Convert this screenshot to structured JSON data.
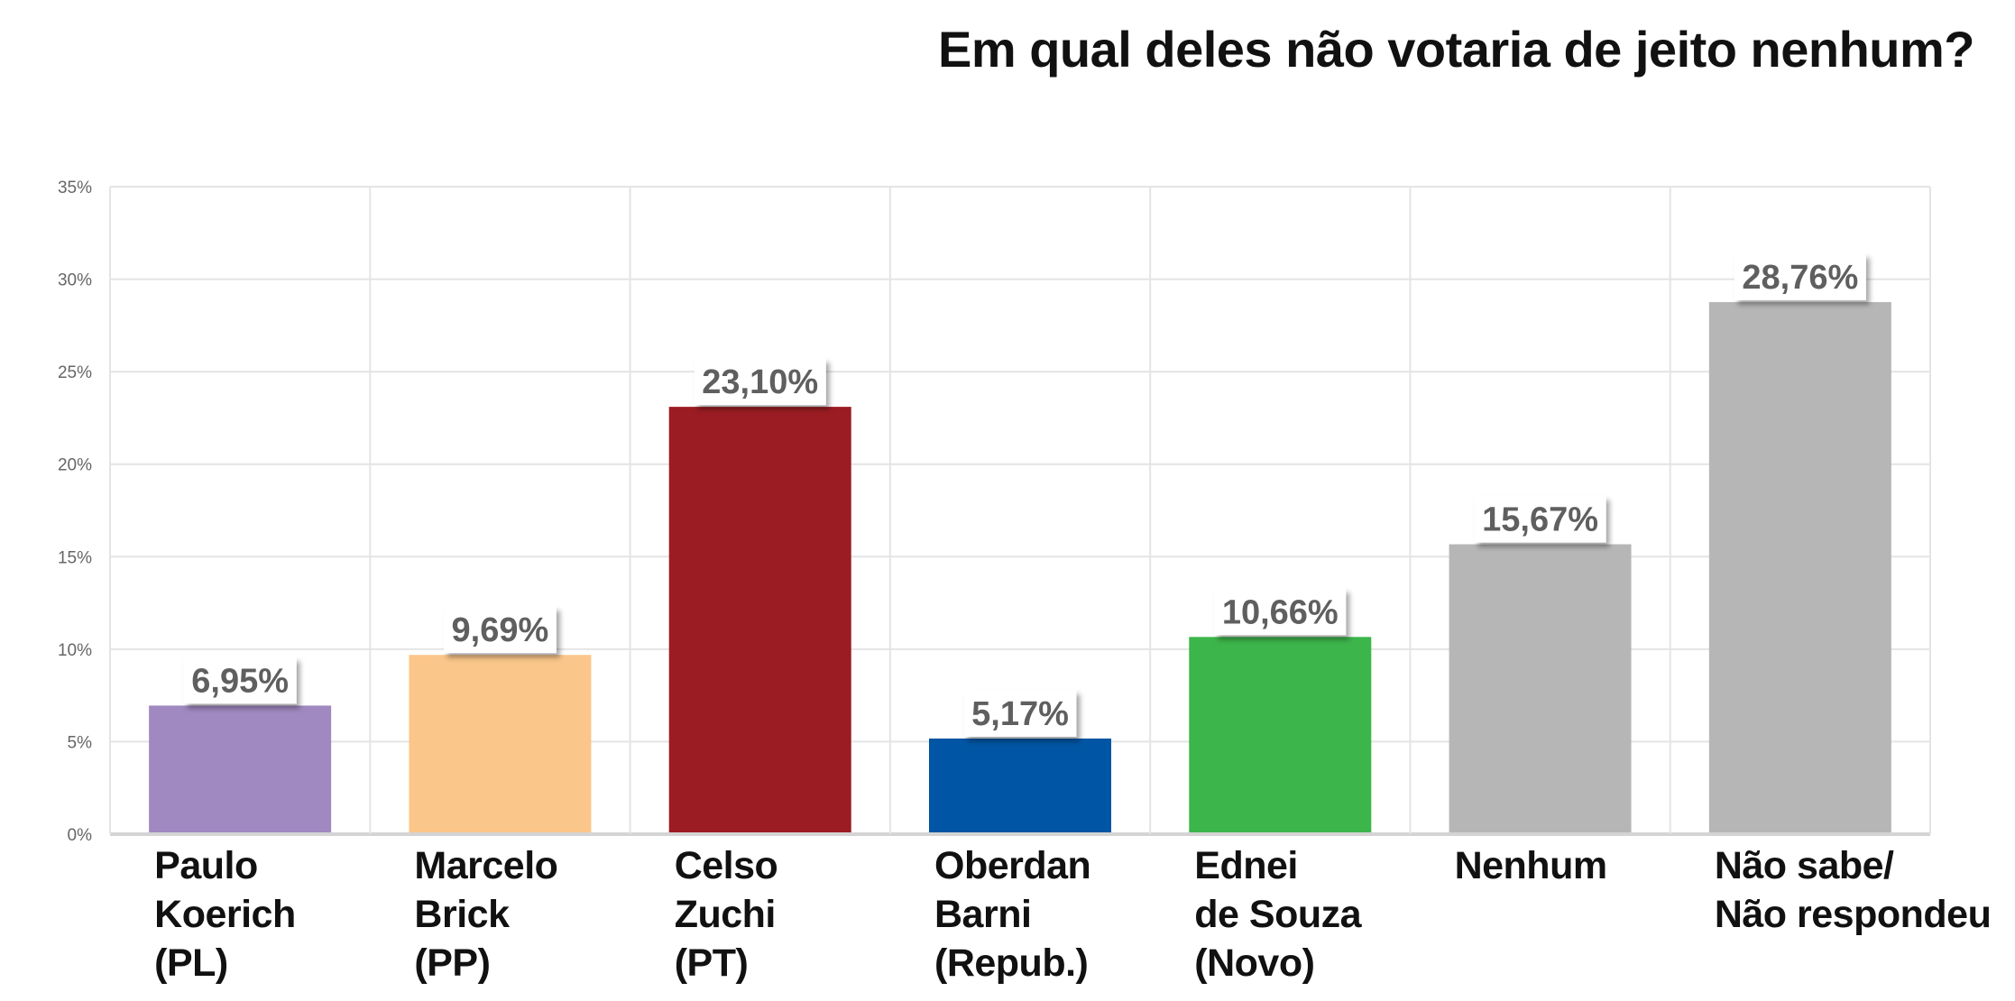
{
  "chart_data": {
    "type": "bar",
    "title": "Em qual deles não votaria de jeito nenhum?",
    "categories": [
      [
        "Paulo",
        "Koerich",
        "(PL)"
      ],
      [
        "Marcelo",
        "Brick",
        "(PP)"
      ],
      [
        "Celso",
        "Zuchi",
        "(PT)"
      ],
      [
        "Oberdan",
        "Barni",
        "(Repub.)"
      ],
      [
        "Ednei",
        "de Souza",
        "(Novo)"
      ],
      [
        "Nenhum"
      ],
      [
        "Não sabe/",
        "Não respondeu"
      ]
    ],
    "values": [
      6.95,
      9.69,
      23.1,
      5.17,
      10.66,
      15.67,
      28.76
    ],
    "value_labels": [
      "6,95%",
      "9,69%",
      "23,10%",
      "5,17%",
      "10,66%",
      "15,67%",
      "28,76%"
    ],
    "colors": [
      "#a088c0",
      "#fbc68a",
      "#9b1c22",
      "#0055a4",
      "#3cb54a",
      "#b6b6b6",
      "#b6b6b6"
    ],
    "ylim": [
      0,
      35
    ],
    "yticks": [
      0,
      5,
      10,
      15,
      20,
      25,
      30,
      35
    ],
    "ytick_labels": [
      "0%",
      "5%",
      "10%",
      "15%",
      "20%",
      "25%",
      "30%",
      "35%"
    ],
    "grid": true,
    "xlabel": "",
    "ylabel": ""
  }
}
